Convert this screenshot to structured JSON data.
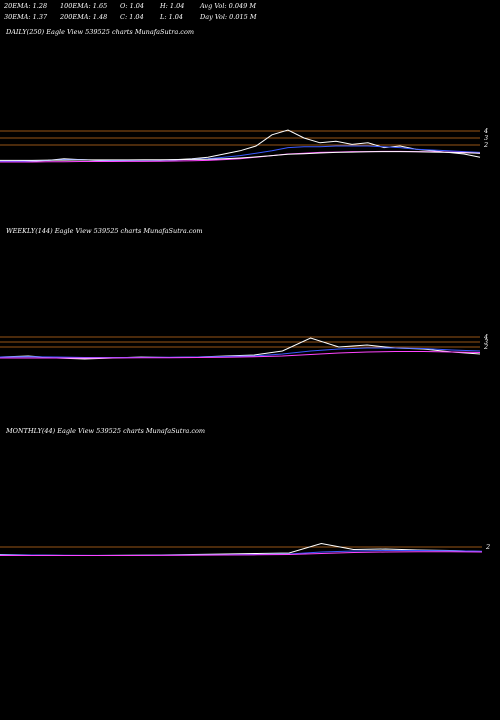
{
  "header": {
    "row1": [
      "20EMA: 1.28",
      "100EMA: 1.65",
      "O: 1.04",
      "H: 1.04",
      "Avg Vol: 0.049 M"
    ],
    "row2": [
      "30EMA: 1.37",
      "200EMA: 1.48",
      "C: 1.04",
      "L: 1.04",
      "Day Vol: 0.015 M"
    ]
  },
  "panels": {
    "daily": {
      "title": "DAILY(250) Eagle  View  539525 charts MunafaSutra.com"
    },
    "weekly": {
      "title": "WEEKLY(144) Eagle  View  539525 charts MunafaSutra.com"
    },
    "monthly": {
      "title": "MONTHLY(44) Eagle  View  539525 charts MunafaSutra.com"
    }
  },
  "chart_data": [
    {
      "type": "line",
      "panel": "daily",
      "y_ticks": [
        "4",
        "3",
        "2"
      ],
      "hlines": [
        4,
        3,
        2
      ],
      "series": [
        {
          "name": "",
          "color": "#ffffff",
          "values": [
            1.3,
            1.3,
            1.35,
            1.4,
            1.5,
            1.45,
            1.4,
            1.38,
            1.4,
            1.42,
            1.4,
            1.45,
            1.5,
            1.6,
            1.8,
            2.0,
            2.3,
            3.0,
            3.3,
            2.8,
            2.5,
            2.6,
            2.4,
            2.5,
            2.2,
            2.3,
            2.1,
            2.0,
            1.9,
            1.8,
            1.6
          ]
        },
        {
          "name": "",
          "color": "#3a5aff",
          "values": [
            1.35,
            1.35,
            1.38,
            1.4,
            1.45,
            1.45,
            1.42,
            1.4,
            1.4,
            1.42,
            1.42,
            1.44,
            1.46,
            1.5,
            1.6,
            1.7,
            1.85,
            2.0,
            2.2,
            2.25,
            2.25,
            2.3,
            2.3,
            2.3,
            2.25,
            2.2,
            2.1,
            2.05,
            2.0,
            1.95,
            1.9
          ]
        },
        {
          "name": "",
          "color": "#ff44ff",
          "values": [
            1.3,
            1.3,
            1.3,
            1.32,
            1.32,
            1.33,
            1.33,
            1.33,
            1.34,
            1.34,
            1.35,
            1.36,
            1.38,
            1.4,
            1.45,
            1.5,
            1.6,
            1.7,
            1.8,
            1.85,
            1.9,
            1.92,
            1.95,
            1.95,
            1.96,
            1.96,
            1.95,
            1.94,
            1.92,
            1.9,
            1.85
          ]
        },
        {
          "name": "",
          "color": "#ffffff",
          "values": [
            1.4,
            1.4,
            1.4,
            1.42,
            1.42,
            1.43,
            1.43,
            1.43,
            1.43,
            1.44,
            1.44,
            1.45,
            1.46,
            1.47,
            1.5,
            1.55,
            1.62,
            1.7,
            1.78,
            1.82,
            1.86,
            1.9,
            1.92,
            1.94,
            1.95,
            1.95,
            1.94,
            1.92,
            1.9,
            1.88,
            1.85
          ]
        }
      ]
    },
    {
      "type": "line",
      "panel": "weekly",
      "y_ticks": [
        "4",
        "3",
        "2"
      ],
      "hlines": [
        4,
        3,
        2
      ],
      "series": [
        {
          "name": "",
          "color": "#ffffff",
          "values": [
            1.4,
            1.5,
            1.3,
            1.2,
            1.3,
            1.4,
            1.35,
            1.4,
            1.5,
            1.6,
            2.0,
            3.3,
            2.4,
            2.6,
            2.3,
            2.2,
            1.9,
            1.7
          ]
        },
        {
          "name": "",
          "color": "#3a5aff",
          "values": [
            1.4,
            1.42,
            1.4,
            1.35,
            1.35,
            1.36,
            1.38,
            1.4,
            1.45,
            1.5,
            1.7,
            2.0,
            2.2,
            2.3,
            2.3,
            2.25,
            2.1,
            2.0
          ]
        },
        {
          "name": "",
          "color": "#ff44ff",
          "values": [
            1.3,
            1.3,
            1.3,
            1.3,
            1.31,
            1.32,
            1.33,
            1.35,
            1.38,
            1.42,
            1.5,
            1.65,
            1.8,
            1.9,
            1.95,
            1.95,
            1.9,
            1.85
          ]
        }
      ]
    },
    {
      "type": "line",
      "panel": "monthly",
      "y_ticks": [
        "2"
      ],
      "hlines": [
        2
      ],
      "series": [
        {
          "name": "",
          "color": "#ffffff",
          "values": [
            1.3,
            1.2,
            1.1,
            1.1,
            1.15,
            1.2,
            1.3,
            1.4,
            1.5,
            1.6,
            3.5,
            2.3,
            2.4,
            2.2,
            2.1,
            1.9
          ]
        },
        {
          "name": "",
          "color": "#3a5aff",
          "values": [
            1.2,
            1.2,
            1.15,
            1.12,
            1.12,
            1.15,
            1.2,
            1.25,
            1.3,
            1.4,
            1.8,
            2.0,
            2.1,
            2.1,
            2.05,
            1.95
          ]
        },
        {
          "name": "",
          "color": "#ff44ff",
          "values": [
            1.1,
            1.1,
            1.1,
            1.1,
            1.1,
            1.12,
            1.15,
            1.2,
            1.25,
            1.3,
            1.5,
            1.7,
            1.8,
            1.85,
            1.85,
            1.8
          ]
        }
      ]
    }
  ]
}
